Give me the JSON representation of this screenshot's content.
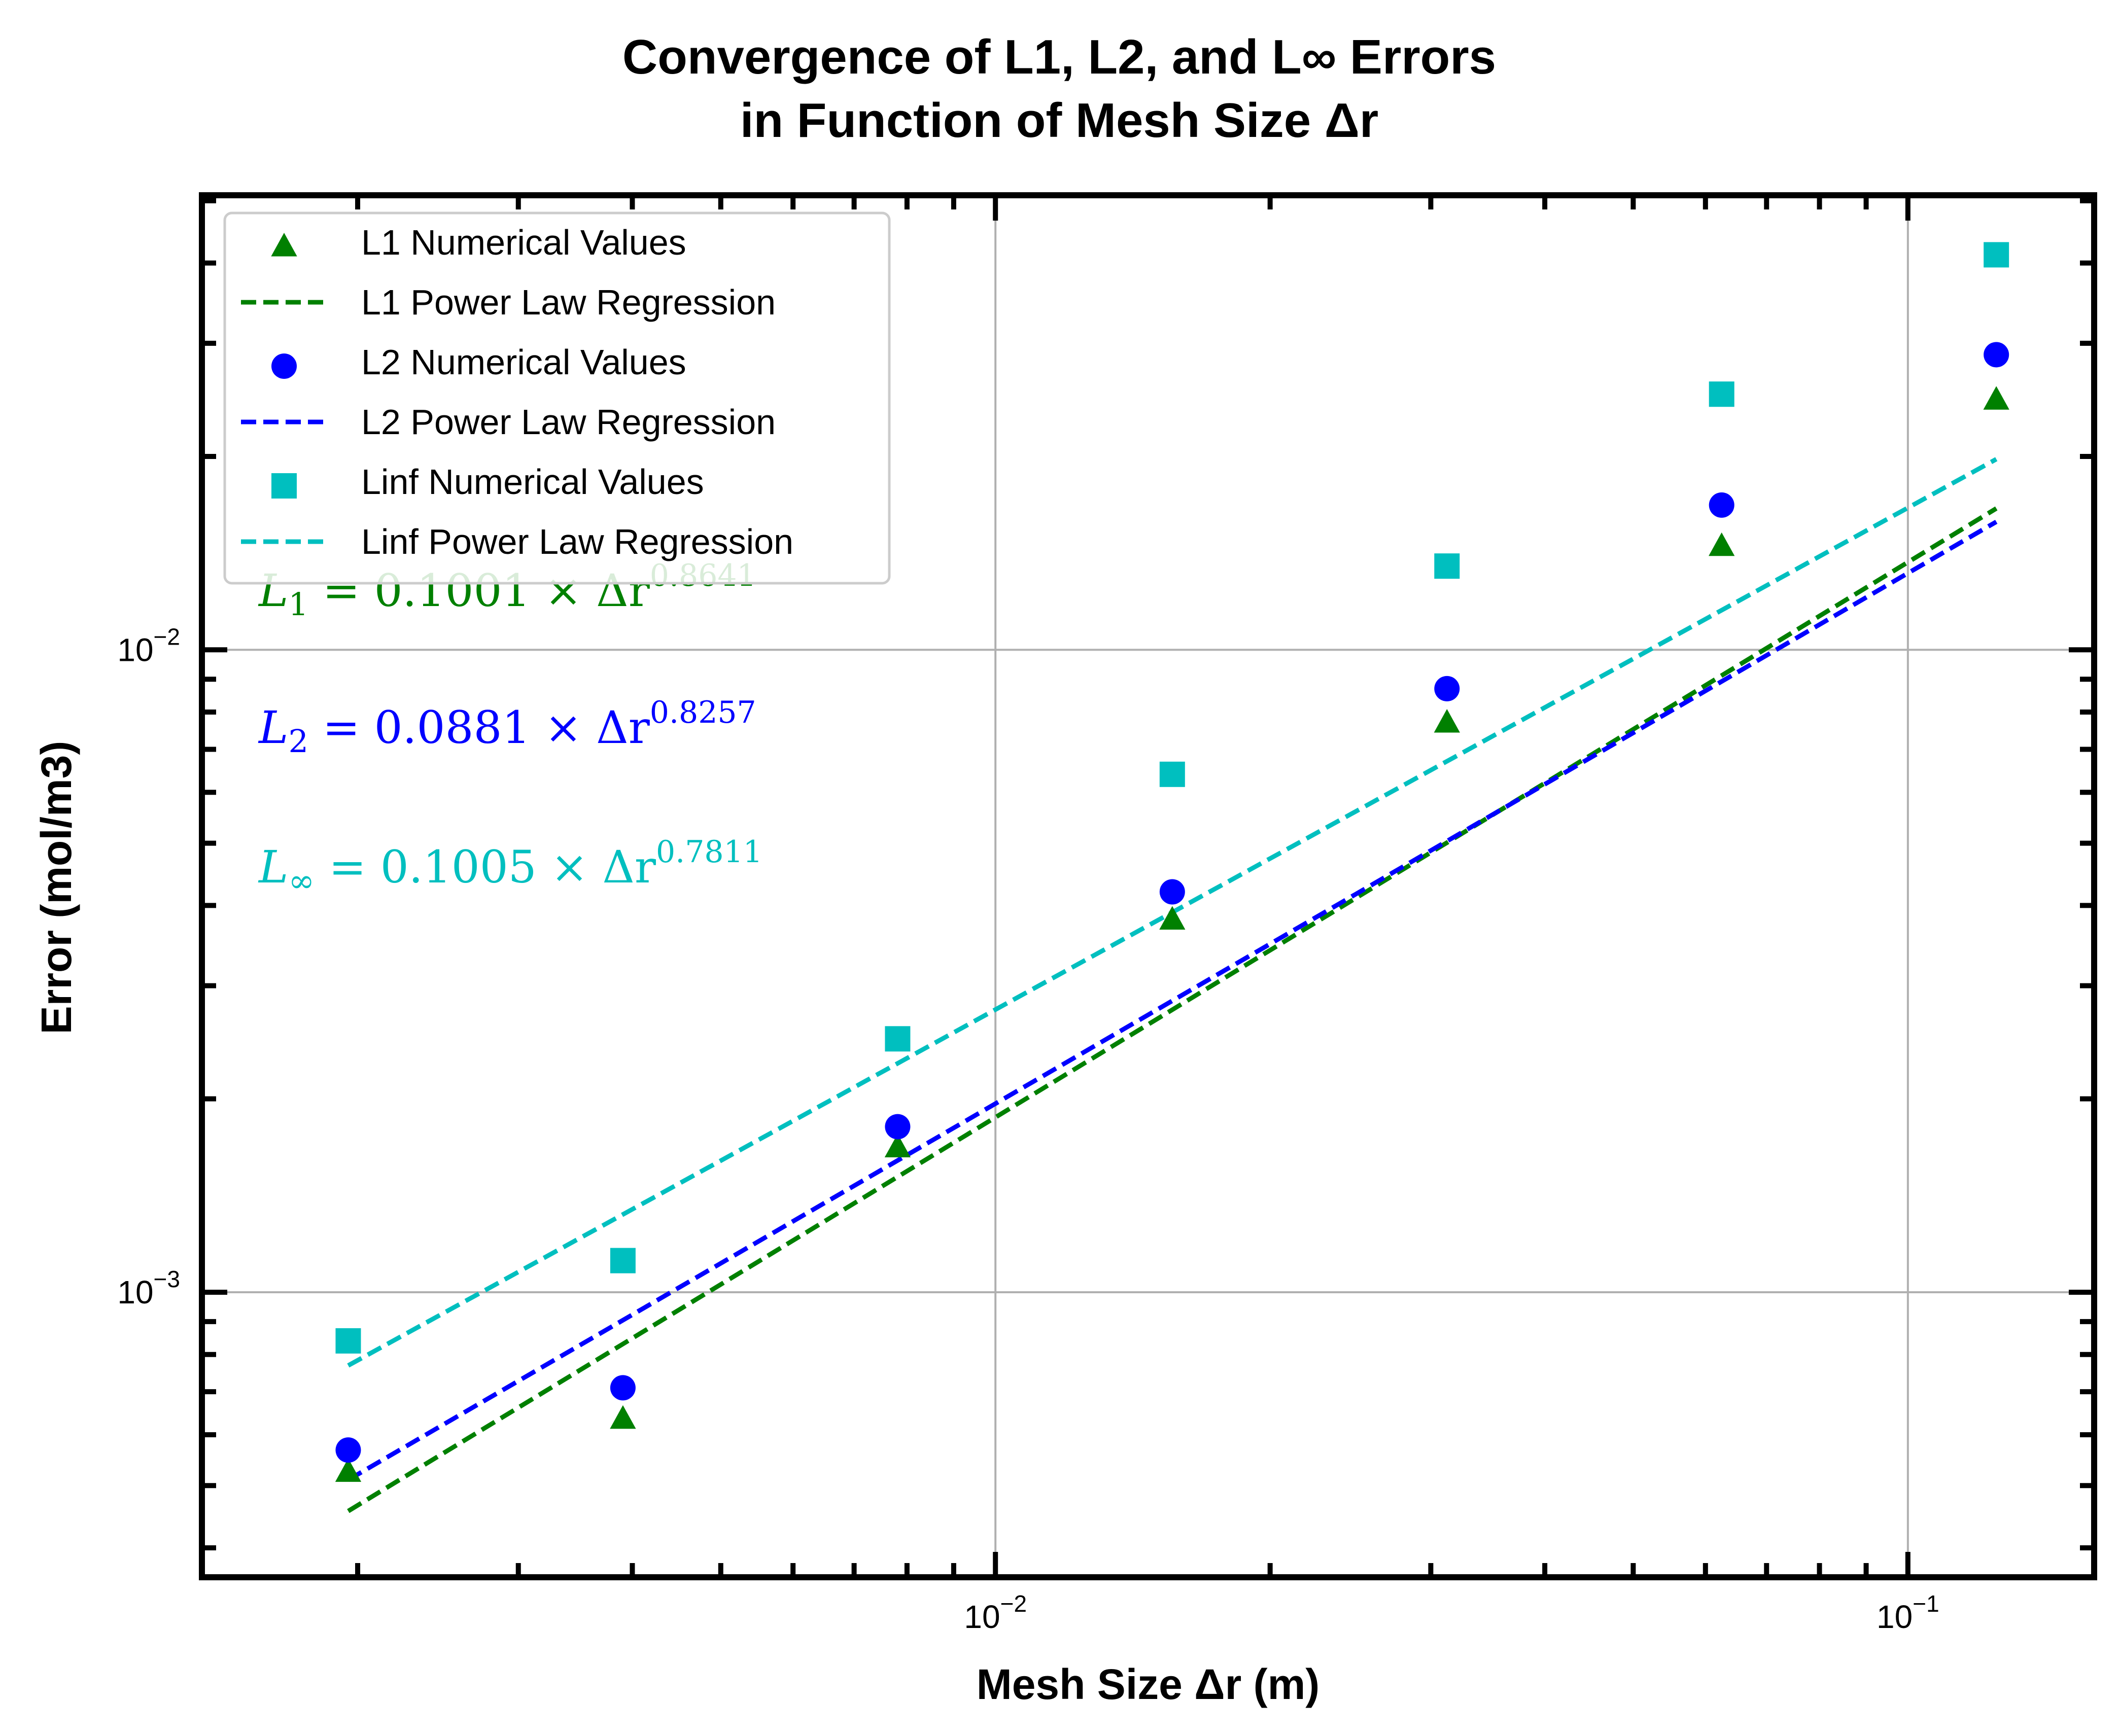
{
  "chart_data": {
    "type": "scatter",
    "title_line1": "Convergence of L1, L2, and L∞ Errors",
    "title_line2": "in Function of Mesh Size Δr",
    "xlabel": "Mesh Size Δr (m)",
    "ylabel": "Error (mol/m3)",
    "xscale": "log",
    "yscale": "log",
    "xlim": [
      0.00135,
      0.16
    ],
    "ylim": [
      0.00036,
      0.051
    ],
    "grid": true,
    "legend_position": "top-left",
    "x_ticks": [
      {
        "value": 0.01,
        "base": "10",
        "exp": "−2"
      },
      {
        "value": 0.1,
        "base": "10",
        "exp": "−1"
      }
    ],
    "y_ticks": [
      {
        "value": 0.001,
        "base": "10",
        "exp": "−3"
      },
      {
        "value": 0.01,
        "base": "10",
        "exp": "−2"
      }
    ],
    "x": [
      0.001953,
      0.003906,
      0.007813,
      0.015625,
      0.03125,
      0.0625,
      0.125
    ],
    "series": [
      {
        "name": "L1 Numerical Values",
        "kind": "points",
        "marker": "triangle",
        "color": "#008000",
        "values": [
          0.000525,
          0.000635,
          0.00168,
          0.0038,
          0.0077,
          0.0145,
          0.0245
        ]
      },
      {
        "name": "L1 Power Law Regression",
        "kind": "fit",
        "color": "#008000",
        "coef": 0.1001,
        "exponent": 0.8641
      },
      {
        "name": "L2 Numerical Values",
        "kind": "points",
        "marker": "circle",
        "color": "#0000ff",
        "values": [
          0.000568,
          0.00071,
          0.00181,
          0.0042,
          0.0087,
          0.0168,
          0.0288
        ]
      },
      {
        "name": "L2 Power Law Regression",
        "kind": "fit",
        "color": "#0000ff",
        "coef": 0.0881,
        "exponent": 0.8257
      },
      {
        "name": "Linf Numerical Values",
        "kind": "points",
        "marker": "square",
        "color": "#00bfbf",
        "values": [
          0.00084,
          0.00112,
          0.00248,
          0.0064,
          0.0135,
          0.025,
          0.0412
        ]
      },
      {
        "name": "Linf Power Law Regression",
        "kind": "fit",
        "color": "#00bfbf",
        "coef": 0.1005,
        "exponent": 0.7811
      }
    ],
    "equations": [
      {
        "lhs_base": "L",
        "lhs_sub": "1",
        "rhs": " = 0.1001 × Δr",
        "exp": "0.8641",
        "color": "#008000"
      },
      {
        "lhs_base": "L",
        "lhs_sub": "2",
        "rhs": " = 0.0881 × Δr",
        "exp": "0.8257",
        "color": "#0000ff"
      },
      {
        "lhs_base": "L",
        "lhs_sub": "∞",
        "rhs": " = 0.1005 × Δr",
        "exp": "0.7811",
        "color": "#00bfbf"
      }
    ]
  }
}
